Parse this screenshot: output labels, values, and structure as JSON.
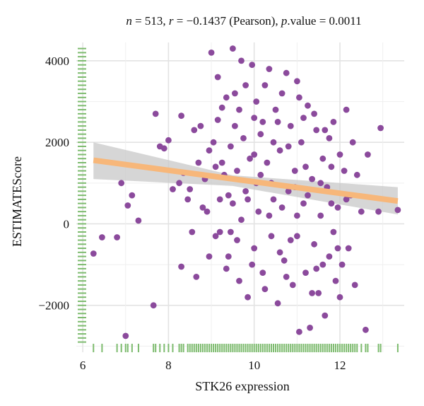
{
  "chart_data": {
    "type": "scatter",
    "title_parts": {
      "n_label": "n",
      "n_value": " = 513, ",
      "r_label": "r",
      "r_value": " = −0.1437 (Pearson), ",
      "p_label": "p",
      "p_value": ".value = 0.0011"
    },
    "xlabel": "STK26 expression",
    "ylabel": "ESTIMATEScore",
    "x_ticks": [
      6,
      8,
      10,
      12
    ],
    "y_ticks": [
      -2000,
      0,
      2000,
      4000
    ],
    "y_tick_labels": [
      "−2000",
      "0",
      "2000",
      "4000"
    ],
    "xlim": [
      5.85,
      13.5
    ],
    "ylim": [
      -3150,
      4450
    ],
    "grid": true,
    "point_color": "#8b4a9c",
    "rug_color": "#7dbb6e",
    "fit_color": "#f7b77a",
    "band_color": "#c8c8c8",
    "fit_line": {
      "x": [
        6.25,
        13.35
      ],
      "y": [
        1560,
        560
      ]
    },
    "confidence_band": {
      "x": [
        6.25,
        9.5,
        13.35
      ],
      "upper": [
        2000,
        1190,
        900
      ],
      "lower": [
        1100,
        930,
        230
      ]
    },
    "points": [
      [
        6.25,
        -730
      ],
      [
        6.45,
        -330
      ],
      [
        6.8,
        -330
      ],
      [
        6.9,
        1000
      ],
      [
        7.0,
        -2750
      ],
      [
        7.05,
        450
      ],
      [
        7.15,
        700
      ],
      [
        7.3,
        80
      ],
      [
        7.65,
        -2000
      ],
      [
        7.7,
        2700
      ],
      [
        7.8,
        1900
      ],
      [
        7.9,
        1850
      ],
      [
        8.0,
        2050
      ],
      [
        8.1,
        850
      ],
      [
        8.25,
        1000
      ],
      [
        8.3,
        -1050
      ],
      [
        8.3,
        2650
      ],
      [
        8.35,
        1250
      ],
      [
        8.45,
        600
      ],
      [
        8.5,
        850
      ],
      [
        8.55,
        -200
      ],
      [
        8.6,
        2300
      ],
      [
        8.65,
        -1300
      ],
      [
        8.7,
        1500
      ],
      [
        8.75,
        2400
      ],
      [
        8.8,
        400
      ],
      [
        8.85,
        1100
      ],
      [
        8.9,
        300
      ],
      [
        8.95,
        1800
      ],
      [
        9.0,
        4200
      ],
      [
        9.05,
        2000
      ],
      [
        9.1,
        1400
      ],
      [
        9.15,
        3600
      ],
      [
        9.2,
        600
      ],
      [
        9.2,
        -200
      ],
      [
        9.25,
        2850
      ],
      [
        9.3,
        1200
      ],
      [
        9.35,
        3100
      ],
      [
        9.4,
        -800
      ],
      [
        9.45,
        1900
      ],
      [
        9.5,
        4300
      ],
      [
        9.5,
        500
      ],
      [
        9.55,
        2400
      ],
      [
        9.6,
        1300
      ],
      [
        9.65,
        -1400
      ],
      [
        9.7,
        4000
      ],
      [
        9.7,
        100
      ],
      [
        9.75,
        2100
      ],
      [
        9.8,
        800
      ],
      [
        9.85,
        -1800
      ],
      [
        9.9,
        1600
      ],
      [
        9.95,
        3900
      ],
      [
        10.0,
        2600
      ],
      [
        10.0,
        -600
      ],
      [
        10.05,
        1000
      ],
      [
        10.1,
        300
      ],
      [
        10.15,
        2200
      ],
      [
        10.2,
        -1200
      ],
      [
        10.25,
        3400
      ],
      [
        10.3,
        1500
      ],
      [
        10.35,
        3800
      ],
      [
        10.4,
        -300
      ],
      [
        10.45,
        600
      ],
      [
        10.5,
        2800
      ],
      [
        10.55,
        -1950
      ],
      [
        10.6,
        1800
      ],
      [
        10.65,
        3200
      ],
      [
        10.7,
        -900
      ],
      [
        10.75,
        3700
      ],
      [
        10.8,
        800
      ],
      [
        10.85,
        2400
      ],
      [
        10.9,
        -1500
      ],
      [
        10.95,
        1300
      ],
      [
        11.0,
        3500
      ],
      [
        11.0,
        -300
      ],
      [
        11.05,
        -2650
      ],
      [
        11.1,
        2000
      ],
      [
        11.15,
        500
      ],
      [
        11.2,
        -1200
      ],
      [
        11.25,
        2900
      ],
      [
        11.3,
        -2550
      ],
      [
        11.35,
        1100
      ],
      [
        11.4,
        -500
      ],
      [
        11.45,
        2300
      ],
      [
        11.5,
        -1700
      ],
      [
        11.55,
        200
      ],
      [
        11.6,
        1600
      ],
      [
        11.65,
        -2250
      ],
      [
        11.7,
        900
      ],
      [
        11.75,
        -800
      ],
      [
        11.8,
        1400
      ],
      [
        11.85,
        2500
      ],
      [
        11.9,
        -1400
      ],
      [
        11.95,
        400
      ],
      [
        12.0,
        1700
      ],
      [
        12.05,
        -1000
      ],
      [
        12.1,
        1300
      ],
      [
        12.15,
        2800
      ],
      [
        12.2,
        -600
      ],
      [
        12.25,
        700
      ],
      [
        12.3,
        2000
      ],
      [
        12.35,
        -1500
      ],
      [
        12.4,
        1200
      ],
      [
        12.5,
        300
      ],
      [
        12.6,
        -2600
      ],
      [
        12.65,
        1700
      ],
      [
        12.9,
        300
      ],
      [
        12.95,
        2350
      ],
      [
        13.35,
        340
      ],
      [
        8.95,
        -800
      ],
      [
        9.15,
        2550
      ],
      [
        9.35,
        -1100
      ],
      [
        9.55,
        3200
      ],
      [
        9.85,
        600
      ],
      [
        10.05,
        3000
      ],
      [
        10.25,
        -1600
      ],
      [
        10.45,
        2000
      ],
      [
        10.65,
        400
      ],
      [
        10.85,
        -400
      ],
      [
        11.05,
        3100
      ],
      [
        11.25,
        700
      ],
      [
        11.45,
        -1100
      ],
      [
        11.65,
        2300
      ],
      [
        11.85,
        -200
      ],
      [
        9.25,
        1500
      ],
      [
        9.45,
        -200
      ],
      [
        9.65,
        2800
      ],
      [
        9.95,
        -1000
      ],
      [
        10.15,
        1200
      ],
      [
        10.35,
        200
      ],
      [
        10.55,
        2500
      ],
      [
        10.75,
        -1300
      ],
      [
        10.95,
        900
      ],
      [
        11.15,
        2600
      ],
      [
        11.35,
        -1700
      ],
      [
        11.55,
        1000
      ],
      [
        11.75,
        2100
      ],
      [
        11.95,
        -600
      ],
      [
        12.15,
        600
      ],
      [
        9.1,
        -300
      ],
      [
        9.4,
        700
      ],
      [
        9.6,
        -400
      ],
      [
        9.8,
        3400
      ],
      [
        10.0,
        1700
      ],
      [
        10.2,
        2500
      ],
      [
        10.4,
        1000
      ],
      [
        10.6,
        -700
      ],
      [
        10.8,
        1900
      ],
      [
        11.0,
        200
      ],
      [
        11.2,
        1400
      ],
      [
        11.4,
        2700
      ],
      [
        11.6,
        -1000
      ],
      [
        11.8,
        500
      ],
      [
        12.0,
        -1800
      ]
    ],
    "rug_y": [
      4300,
      4200,
      4100,
      4000,
      3900,
      3800,
      3700,
      3600,
      3500,
      3400,
      3300,
      3200,
      3100,
      3000,
      2900,
      2800,
      2700,
      2600,
      2500,
      2400,
      2300,
      2200,
      2100,
      2000,
      1900,
      1800,
      1700,
      1600,
      1500,
      1400,
      1300,
      1200,
      1100,
      1000,
      900,
      800,
      700,
      600,
      500,
      400,
      300,
      200,
      100,
      0,
      -100,
      -200,
      -300,
      -400,
      -500,
      -600,
      -700,
      -800,
      -900,
      -1000,
      -1100,
      -1200,
      -1300,
      -1400,
      -1500,
      -1600,
      -1700,
      -1800,
      -1900,
      -2000,
      -2100,
      -2200,
      -2300,
      -2400,
      -2500,
      -2600,
      -2700,
      -2800,
      -2900
    ],
    "rug_x": [
      6.25,
      6.45,
      6.8,
      6.9,
      7.0,
      7.05,
      7.15,
      7.3,
      7.65,
      7.7,
      7.8,
      7.9,
      8.0,
      8.1,
      8.25,
      8.3,
      8.35,
      8.45,
      8.5,
      8.55,
      8.6,
      8.65,
      8.7,
      8.75,
      8.8,
      8.85,
      8.9,
      8.95,
      9.0,
      9.05,
      9.1,
      9.15,
      9.2,
      9.25,
      9.3,
      9.35,
      9.4,
      9.45,
      9.5,
      9.55,
      9.6,
      9.65,
      9.7,
      9.75,
      9.8,
      9.85,
      9.9,
      9.95,
      10.0,
      10.05,
      10.1,
      10.15,
      10.2,
      10.25,
      10.3,
      10.35,
      10.4,
      10.45,
      10.5,
      10.55,
      10.6,
      10.65,
      10.7,
      10.75,
      10.8,
      10.85,
      10.9,
      10.95,
      11.0,
      11.05,
      11.1,
      11.15,
      11.2,
      11.25,
      11.3,
      11.35,
      11.4,
      11.45,
      11.5,
      11.55,
      11.6,
      11.65,
      11.7,
      11.75,
      11.8,
      11.85,
      11.9,
      11.95,
      12.0,
      12.05,
      12.1,
      12.15,
      12.2,
      12.25,
      12.3,
      12.35,
      12.4,
      12.5,
      12.6,
      12.65,
      12.9,
      12.95,
      13.35
    ]
  }
}
